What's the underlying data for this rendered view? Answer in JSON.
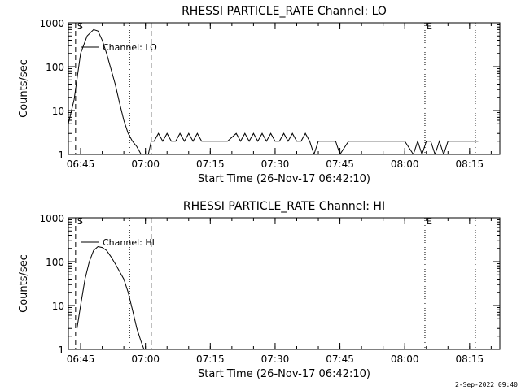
{
  "footer_timestamp": "2-Sep-2022 09:40",
  "chart_data": [
    {
      "type": "line",
      "title": "RHESSI PARTICLE_RATE Channel: LO",
      "xlabel": "Start Time (26-Nov-17 06:42:10)",
      "ylabel": "Counts/sec",
      "yscale": "log",
      "ylim": [
        1,
        1000
      ],
      "xlim": [
        "06:42:10",
        "08:22:00"
      ],
      "x_ticks": [
        "06:45",
        "07:00",
        "07:15",
        "07:30",
        "07:45",
        "08:00",
        "08:15"
      ],
      "y_ticks": [
        "1",
        "10",
        "100",
        "1000"
      ],
      "legend": "Channel: LO",
      "markers": [
        {
          "time": "06:43:50",
          "style": "dashed",
          "label": "S"
        },
        {
          "time": "06:56:20",
          "style": "dotted",
          "label": ""
        },
        {
          "time": "07:01:20",
          "style": "dashed",
          "label": ""
        },
        {
          "time": "08:04:40",
          "style": "dotted",
          "label": "E"
        },
        {
          "time": "08:16:20",
          "style": "dotted",
          "label": ""
        }
      ],
      "series": [
        {
          "x": [
            "06:42:10",
            "06:43:30",
            "06:45:00",
            "06:46:30",
            "06:48:00",
            "06:49:00",
            "06:50:00",
            "06:51:00",
            "06:52:00",
            "06:53:00",
            "06:54:00",
            "06:55:00",
            "06:56:00",
            "06:57:00",
            "06:58:00",
            "06:59:00",
            "06:59:30",
            "07:00:40",
            "07:01:20",
            "07:02:00",
            "07:03:00",
            "07:04:00",
            "07:05:00",
            "07:06:00",
            "07:07:00",
            "07:08:00",
            "07:09:00",
            "07:10:00",
            "07:11:00",
            "07:12:00",
            "07:13:00",
            "07:14:00",
            "07:15:00",
            "07:17:00",
            "07:19:00",
            "07:21:00",
            "07:22:00",
            "07:23:00",
            "07:24:00",
            "07:25:00",
            "07:26:00",
            "07:27:00",
            "07:28:00",
            "07:29:00",
            "07:30:00",
            "07:31:00",
            "07:32:00",
            "07:33:00",
            "07:34:00",
            "07:35:00",
            "07:36:00",
            "07:37:00",
            "07:38:00",
            "07:39:00",
            "07:40:00",
            "07:42:00",
            "07:44:00",
            "07:45:00",
            "07:47:00",
            "07:49:00",
            "07:52:00",
            "07:55:00",
            "07:58:00",
            "08:00:00",
            "08:02:00",
            "08:03:00",
            "08:04:00",
            "08:05:00",
            "08:06:00",
            "08:07:00",
            "08:08:00",
            "08:09:00",
            "08:10:00",
            "08:11:00",
            "08:13:00",
            "08:15:00",
            "08:17:00"
          ],
          "values": [
            5,
            18,
            200,
            500,
            700,
            650,
            400,
            200,
            90,
            40,
            15,
            6,
            3,
            2,
            1.5,
            1,
            1,
            1,
            2,
            2,
            3,
            2,
            3,
            2,
            2,
            3,
            2,
            3,
            2,
            3,
            2,
            2,
            2,
            2,
            2,
            3,
            2,
            3,
            2,
            3,
            2,
            3,
            2,
            3,
            2,
            2,
            3,
            2,
            3,
            2,
            2,
            3,
            2,
            1,
            2,
            2,
            2,
            1,
            2,
            2,
            2,
            2,
            2,
            2,
            1,
            2,
            1,
            2,
            2,
            1,
            2,
            1,
            2,
            2,
            2,
            2,
            2
          ]
        }
      ]
    },
    {
      "type": "line",
      "title": "RHESSI PARTICLE_RATE Channel: HI",
      "xlabel": "Start Time (26-Nov-17 06:42:10)",
      "ylabel": "Counts/sec",
      "yscale": "log",
      "ylim": [
        1,
        1000
      ],
      "xlim": [
        "06:42:10",
        "08:22:00"
      ],
      "x_ticks": [
        "06:45",
        "07:00",
        "07:15",
        "07:30",
        "07:45",
        "08:00",
        "08:15"
      ],
      "y_ticks": [
        "1",
        "10",
        "100",
        "1000"
      ],
      "legend": "Channel: HI",
      "markers": [
        {
          "time": "06:43:50",
          "style": "dashed",
          "label": "S"
        },
        {
          "time": "06:56:20",
          "style": "dotted",
          "label": ""
        },
        {
          "time": "07:01:20",
          "style": "dashed",
          "label": ""
        },
        {
          "time": "08:04:40",
          "style": "dotted",
          "label": "E"
        },
        {
          "time": "08:16:20",
          "style": "dotted",
          "label": ""
        }
      ],
      "series": [
        {
          "x": [
            "06:44:10",
            "06:45:00",
            "06:46:00",
            "06:47:00",
            "06:48:00",
            "06:49:00",
            "06:50:00",
            "06:51:00",
            "06:52:00",
            "06:53:00",
            "06:54:00",
            "06:55:00",
            "06:56:00",
            "06:57:00",
            "06:58:00",
            "06:59:00",
            "06:59:40"
          ],
          "values": [
            3,
            10,
            40,
            100,
            180,
            220,
            210,
            180,
            130,
            90,
            60,
            40,
            20,
            8,
            3,
            1.5,
            1
          ]
        }
      ]
    }
  ]
}
